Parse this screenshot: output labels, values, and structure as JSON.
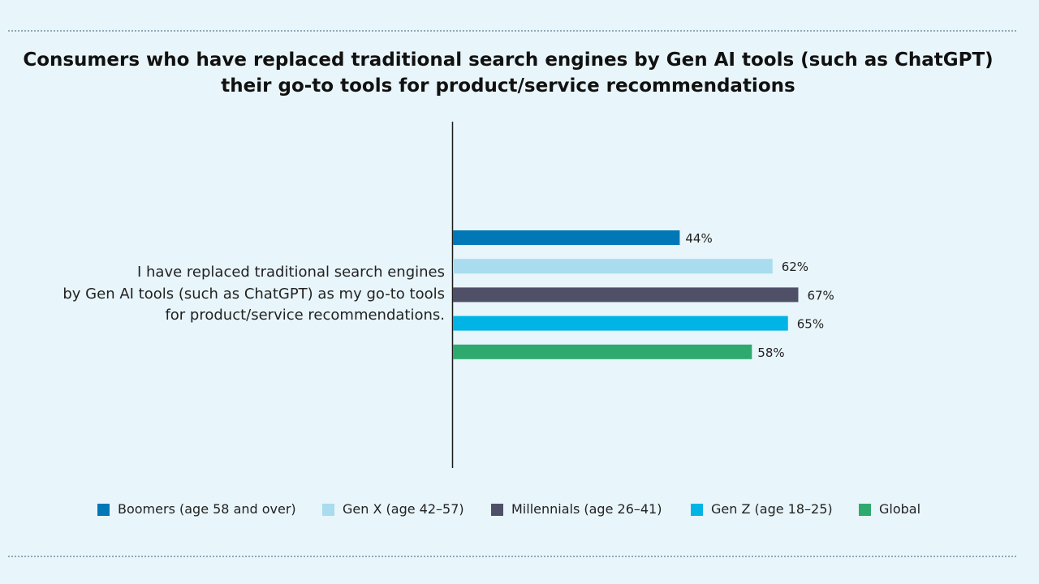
{
  "chart_data": {
    "type": "bar",
    "orientation": "horizontal",
    "title_line1": "Consumers who have replaced traditional search engines by Gen AI tools (such as ChatGPT)",
    "title_line2": "their go-to tools for product/service recommendations",
    "category_lines": [
      "I have replaced traditional search engines",
      "by Gen AI tools (such as ChatGPT) as my go-to tools",
      "for product/service recommendations."
    ],
    "categories": [
      "I have replaced traditional search engines by Gen AI tools (such as ChatGPT) as my go-to tools for product/service recommendations."
    ],
    "series": [
      {
        "name": "Boomers (age 58 and over)",
        "values": [
          44
        ],
        "label": "44%",
        "color": "#0077b6"
      },
      {
        "name": "Gen X (age 42–57)",
        "values": [
          62
        ],
        "label": "62%",
        "color": "#a8dcee"
      },
      {
        "name": "Millennials (age 26–41)",
        "values": [
          67
        ],
        "label": "67%",
        "color": "#4f5068"
      },
      {
        "name": "Gen Z (age 18–25)",
        "values": [
          65
        ],
        "label": "65%",
        "color": "#00b4e6"
      },
      {
        "name": "Global",
        "values": [
          58
        ],
        "label": "58%",
        "color": "#2eaa6f"
      }
    ],
    "unit": "%",
    "grid": false,
    "legend_position": "bottom"
  }
}
